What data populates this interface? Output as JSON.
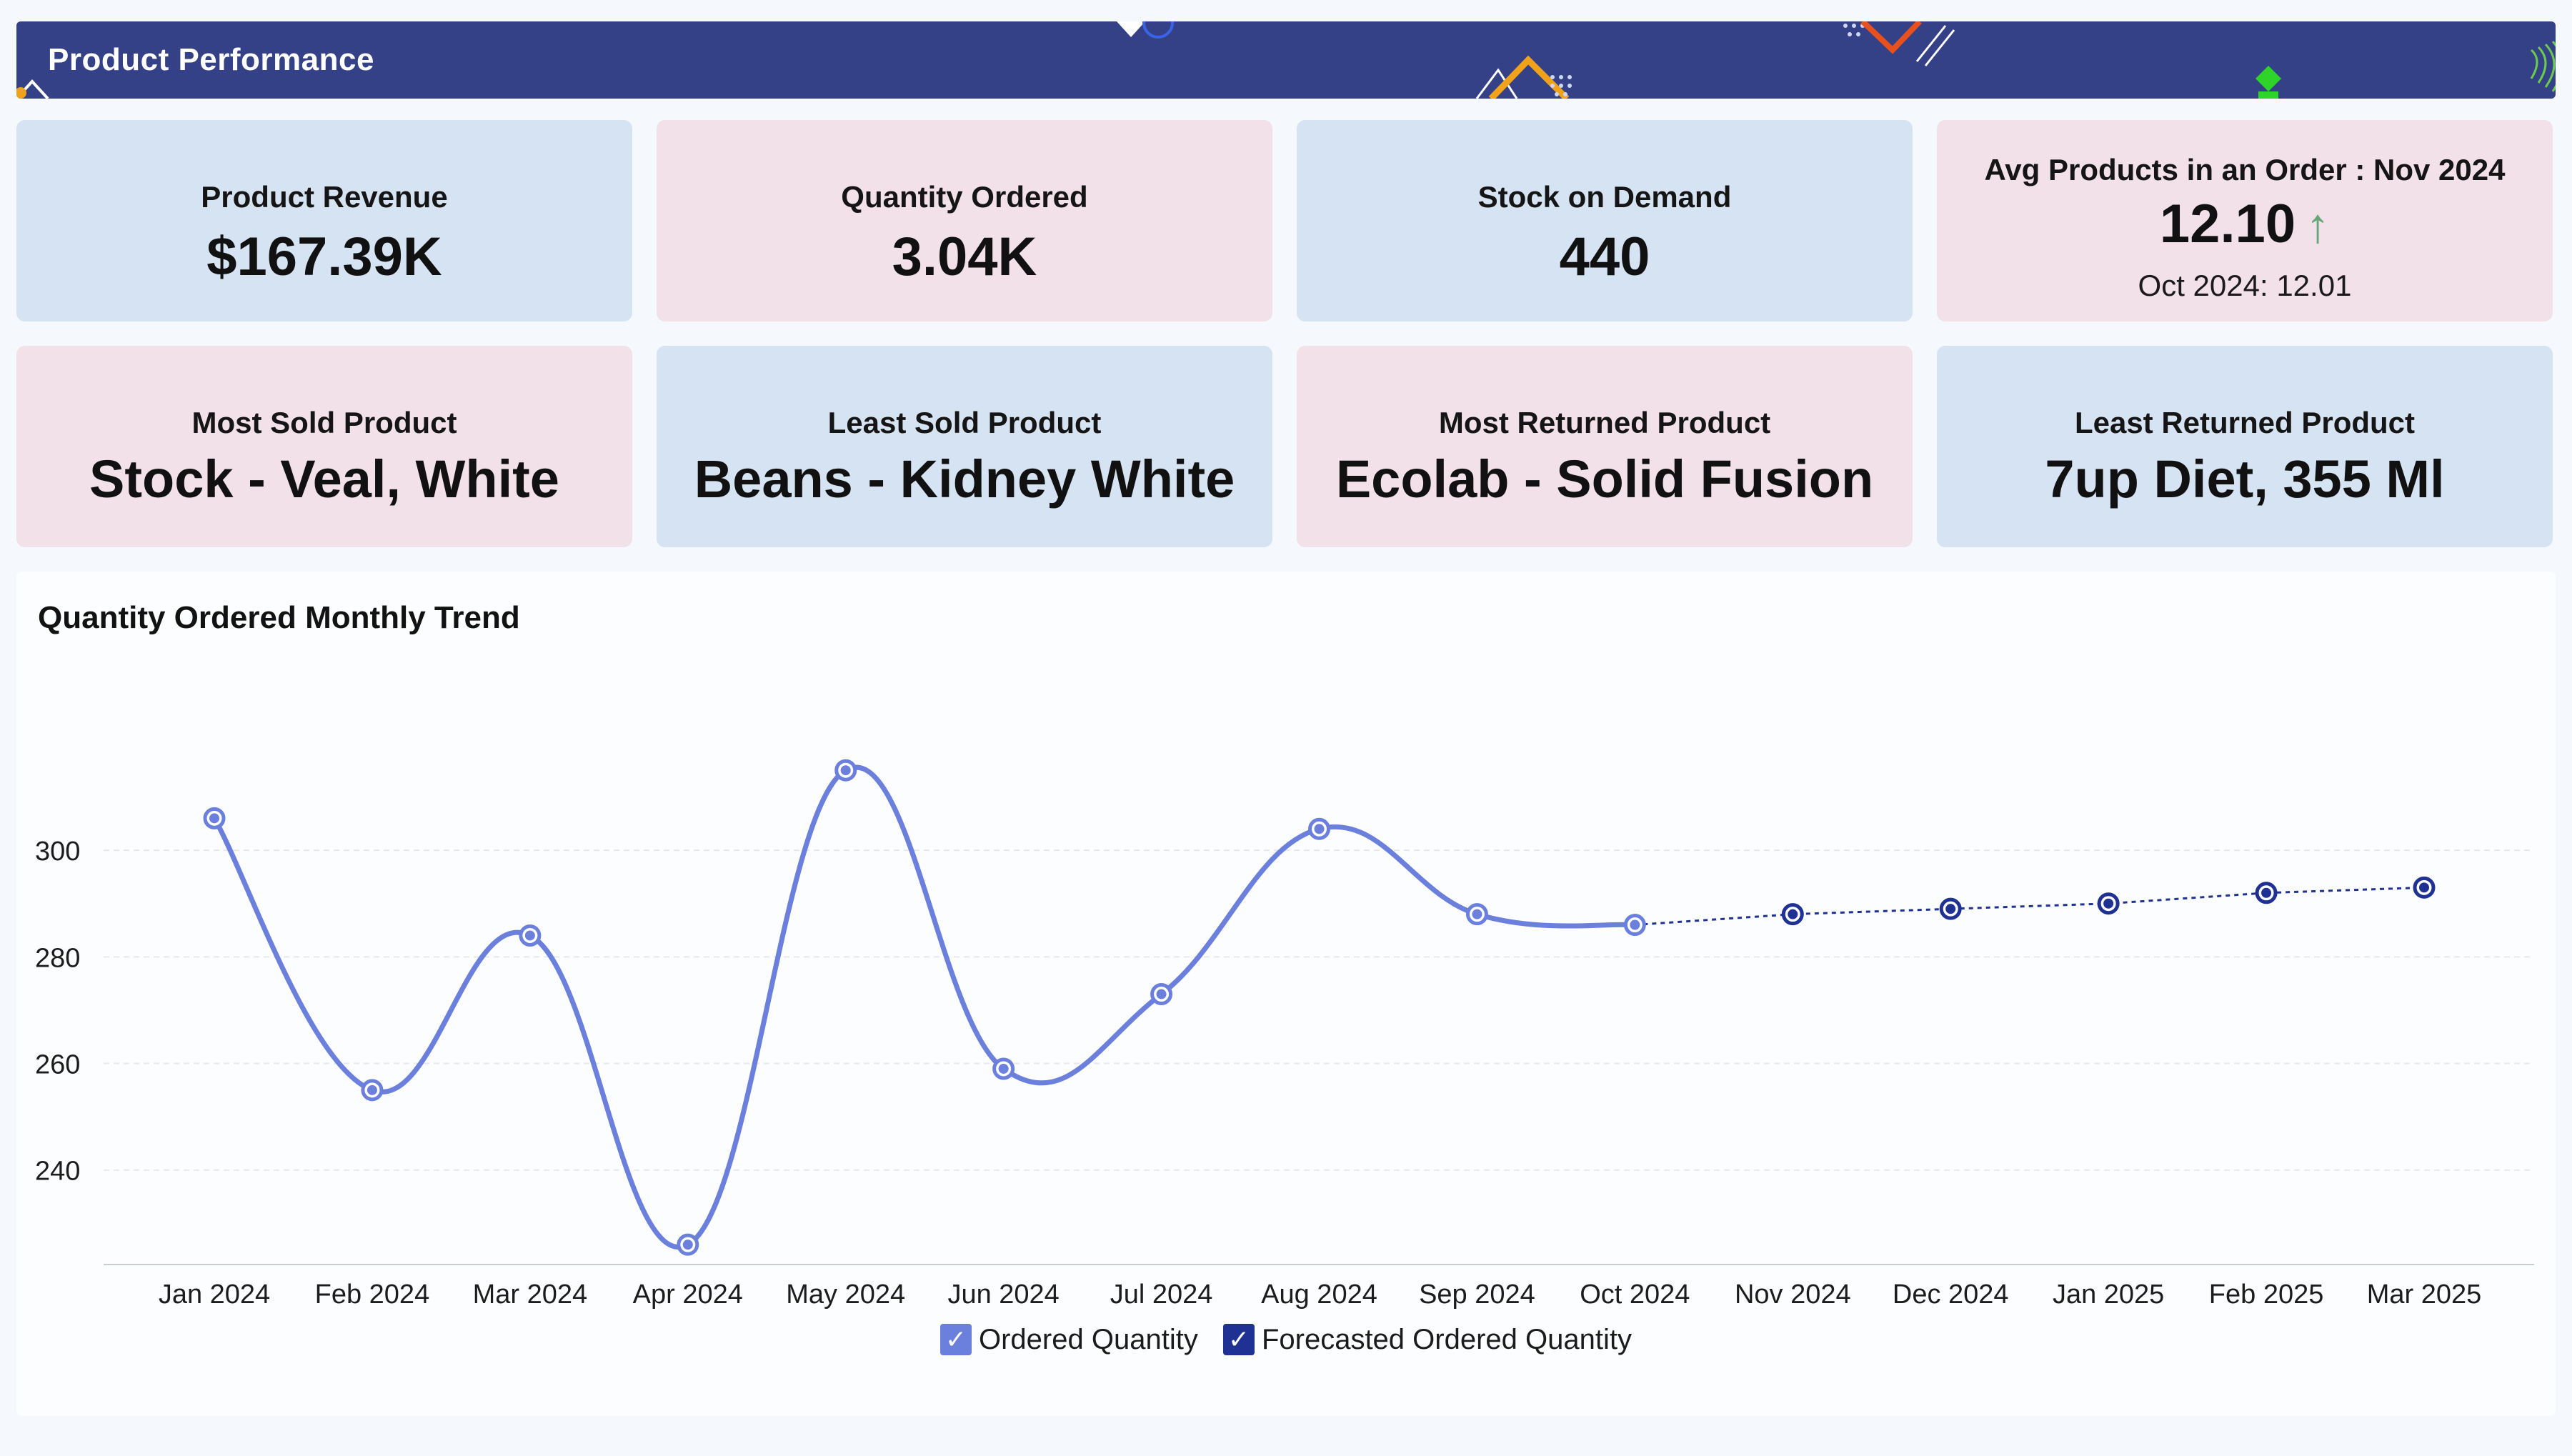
{
  "header": {
    "title": "Product Performance"
  },
  "kpis": {
    "product_revenue": {
      "label": "Product Revenue",
      "value": "$167.39K"
    },
    "quantity_ordered": {
      "label": "Quantity Ordered",
      "value": "3.04K"
    },
    "stock_on_demand": {
      "label": "Stock on Demand",
      "value": "440"
    },
    "avg_products": {
      "label": "Avg Products in an Order : Nov 2024",
      "value": "12.10",
      "trend": "up",
      "previous": "Oct 2024: 12.01"
    },
    "most_sold": {
      "label": "Most Sold Product",
      "value": "Stock - Veal, White"
    },
    "least_sold": {
      "label": "Least Sold Product",
      "value": "Beans - Kidney White"
    },
    "most_returned": {
      "label": "Most Returned Product",
      "value": "Ecolab - Solid Fusion"
    },
    "least_returned": {
      "label": "Least Returned Product",
      "value": "7up Diet, 355 Ml"
    }
  },
  "colors": {
    "header": "#344187",
    "card_blue": "#d5e3f2",
    "card_pink": "#f2e1e8",
    "ordered_series": "#6b7fdc",
    "forecast_series": "#1f3192",
    "trend_up": "#6aa57a"
  },
  "chart_data": {
    "type": "line",
    "title": "Quantity Ordered Monthly Trend",
    "categories": [
      "Jan 2024",
      "Feb 2024",
      "Mar 2024",
      "Apr 2024",
      "May 2024",
      "Jun 2024",
      "Jul 2024",
      "Aug 2024",
      "Sep 2024",
      "Oct 2024",
      "Nov 2024",
      "Dec 2024",
      "Jan 2025",
      "Feb 2025",
      "Mar 2025"
    ],
    "series": [
      {
        "name": "Ordered Quantity",
        "style": "solid-smooth",
        "values": [
          306,
          255,
          284,
          226,
          315,
          259,
          273,
          304,
          288,
          286,
          null,
          null,
          null,
          null,
          null
        ]
      },
      {
        "name": "Forecasted Ordered Quantity",
        "style": "dotted",
        "values": [
          null,
          null,
          null,
          null,
          null,
          null,
          null,
          null,
          null,
          286,
          288,
          289,
          290,
          292,
          293
        ]
      }
    ],
    "yticks": [
      240,
      260,
      280,
      300
    ],
    "ylim": [
      222,
      322
    ],
    "grid": true,
    "legend_position": "bottom-center",
    "legend_checked": [
      true,
      true
    ]
  }
}
